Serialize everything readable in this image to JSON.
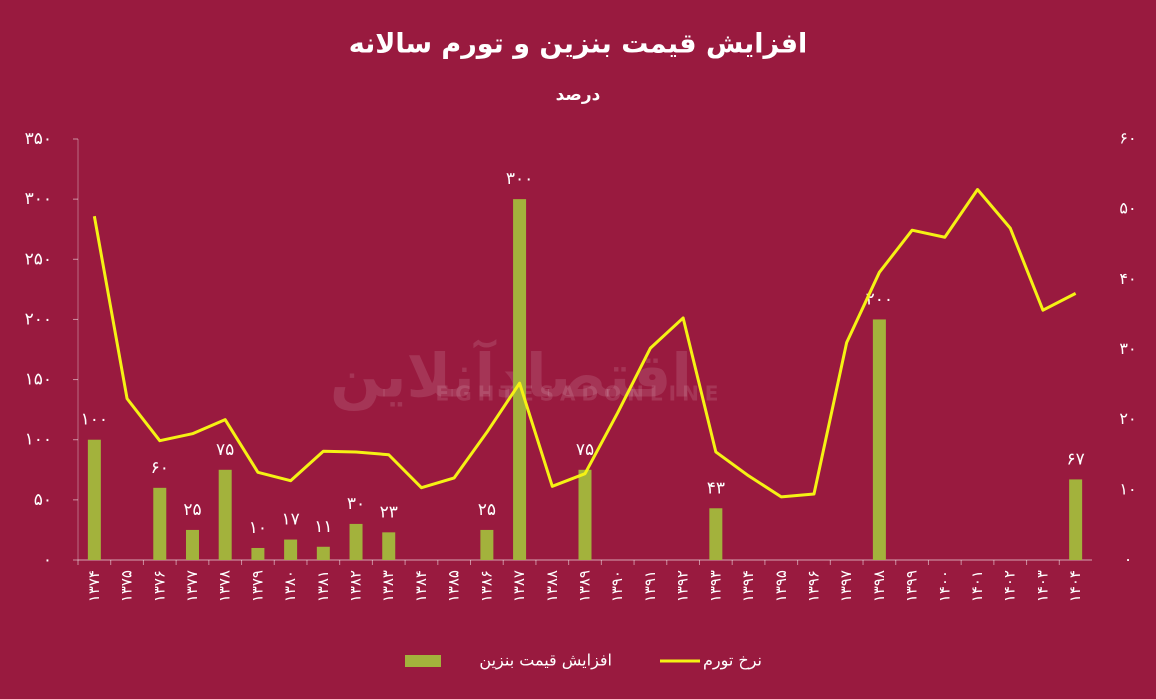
{
  "chart_data": {
    "type": "bar_line",
    "title": "افزایش قیمت بنزین و تورم سالانه",
    "subtitle": "درصد",
    "watermark": "اقتصادآنلاین",
    "watermark_latin": "EGHTESADONLINE",
    "background": "#991a3f",
    "categories": [
      "۱۳۷۴",
      "۱۳۷۵",
      "۱۳۷۶",
      "۱۳۷۷",
      "۱۳۷۸",
      "۱۳۷۹",
      "۱۳۸۰",
      "۱۳۸۱",
      "۱۳۸۲",
      "۱۳۸۳",
      "۱۳۸۴",
      "۱۳۸۵",
      "۱۳۸۶",
      "۱۳۸۷",
      "۱۳۸۸",
      "۱۳۸۹",
      "۱۳۹۰",
      "۱۳۹۱",
      "۱۳۹۲",
      "۱۳۹۳",
      "۱۳۹۴",
      "۱۳۹۵",
      "۱۳۹۶",
      "۱۳۹۷",
      "۱۳۹۸",
      "۱۳۹۹",
      "۱۴۰۰",
      "۱۴۰۱",
      "۱۴۰۲",
      "۱۴۰۳",
      "۱۴۰۴"
    ],
    "series": [
      {
        "name": "افزایش قیمت بنزین",
        "type": "bar",
        "color": "#a3b23c",
        "values": [
          100,
          null,
          60,
          25,
          75,
          10,
          17,
          11,
          30,
          23,
          null,
          null,
          25,
          300,
          null,
          75,
          null,
          null,
          null,
          43,
          null,
          null,
          null,
          null,
          200,
          null,
          null,
          null,
          null,
          null,
          67
        ],
        "value_labels": [
          "۱۰۰",
          null,
          "۶۰",
          "۲۵",
          "۷۵",
          "۱۰",
          "۱۷",
          "۱۱",
          "۳۰",
          "۲۳",
          null,
          null,
          "۲۵",
          "۳۰۰",
          null,
          "۷۵",
          null,
          null,
          null,
          "۴۳",
          null,
          null,
          null,
          null,
          "۲۰۰",
          null,
          null,
          null,
          null,
          null,
          "۶۷"
        ]
      },
      {
        "name": "نرخ تورم",
        "type": "line",
        "axis": "y2",
        "color": "#f5f214",
        "values": [
          49,
          23,
          17,
          18,
          20,
          12.5,
          11.3,
          15.5,
          15.4,
          15,
          10.3,
          11.7,
          18.2,
          25.2,
          10.5,
          12.3,
          21,
          30.2,
          34.5,
          15.4,
          12,
          9,
          9.4,
          31,
          41,
          47,
          46,
          52.8,
          47.3,
          35.6,
          38
        ]
      }
    ],
    "ylim": [
      0,
      350
    ],
    "yticks": [
      {
        "value": 0,
        "label": "۰"
      },
      {
        "value": 50,
        "label": "۵۰"
      },
      {
        "value": 100,
        "label": "۱۰۰"
      },
      {
        "value": 150,
        "label": "۱۵۰"
      },
      {
        "value": 200,
        "label": "۲۰۰"
      },
      {
        "value": 250,
        "label": "۲۵۰"
      },
      {
        "value": 300,
        "label": "۳۰۰"
      },
      {
        "value": 350,
        "label": "۳۵۰"
      }
    ],
    "y2lim": [
      0,
      60
    ],
    "y2ticks": [
      {
        "value": 0,
        "label": "۰"
      },
      {
        "value": 10,
        "label": "۱۰"
      },
      {
        "value": 20,
        "label": "۲۰"
      },
      {
        "value": 30,
        "label": "۳۰"
      },
      {
        "value": 40,
        "label": "۴۰"
      },
      {
        "value": 50,
        "label": "۵۰"
      },
      {
        "value": 60,
        "label": "۶۰"
      }
    ]
  }
}
